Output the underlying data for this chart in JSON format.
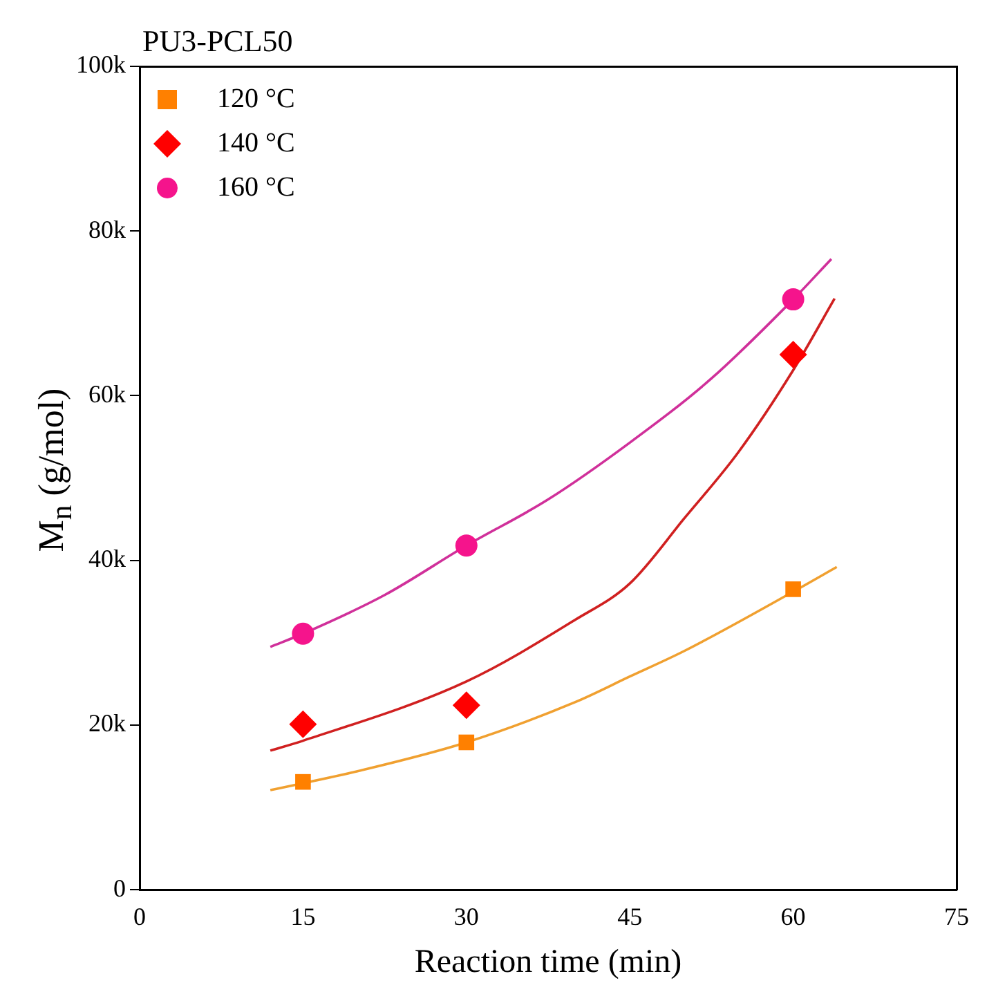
{
  "chart_data": {
    "type": "scatter",
    "title": "PU3-PCL50",
    "xlabel": "Reaction time (min)",
    "ylabel": "M$_{n}$ (g/mol)",
    "xlim": [
      0,
      75
    ],
    "xticks": [
      0,
      15,
      30,
      45,
      60,
      75
    ],
    "ylim": [
      0,
      100000
    ],
    "yticks": [
      {
        "value": 0,
        "label": "0"
      },
      {
        "value": 20000,
        "label": "20k"
      },
      {
        "value": 40000,
        "label": "40k"
      },
      {
        "value": 60000,
        "label": "60k"
      },
      {
        "value": 80000,
        "label": "80k"
      },
      {
        "value": 100000,
        "label": "100k"
      }
    ],
    "grid": false,
    "legend": "top left",
    "series": [
      {
        "name": "120 °C",
        "color": "#ff8000",
        "marker": "square",
        "x": [
          15,
          30,
          60
        ],
        "values": [
          13100,
          17900,
          36500
        ]
      },
      {
        "name": "140 °C",
        "color": "#ff0000",
        "marker": "diamond",
        "x": [
          15,
          30,
          60
        ],
        "values": [
          20100,
          22400,
          65000
        ]
      },
      {
        "name": "160 °C",
        "color": "#f5148c",
        "marker": "circle",
        "x": [
          15,
          30,
          60
        ],
        "values": [
          31100,
          41800,
          71700
        ]
      },
      {
        "type": "line",
        "color": "#f0a030",
        "marker": "none",
        "x": [
          12,
          20,
          30,
          40,
          45,
          50,
          60,
          64
        ],
        "values": [
          12100,
          14400,
          17900,
          22800,
          25900,
          29000,
          36200,
          39200
        ]
      },
      {
        "type": "line",
        "color": "#d02020",
        "marker": "none",
        "x": [
          12,
          15,
          30,
          40,
          45,
          50,
          55,
          60,
          63.8
        ],
        "values": [
          16900,
          18100,
          25300,
          32800,
          37200,
          45100,
          53200,
          63100,
          71800
        ]
      },
      {
        "type": "line",
        "color": "#d0309a",
        "marker": "none",
        "x": [
          12,
          15,
          22.5,
          30,
          37.5,
          45,
          52.5,
          60,
          63.5
        ],
        "values": [
          29500,
          31100,
          35800,
          41800,
          47400,
          54300,
          62100,
          71700,
          76600
        ]
      }
    ]
  }
}
